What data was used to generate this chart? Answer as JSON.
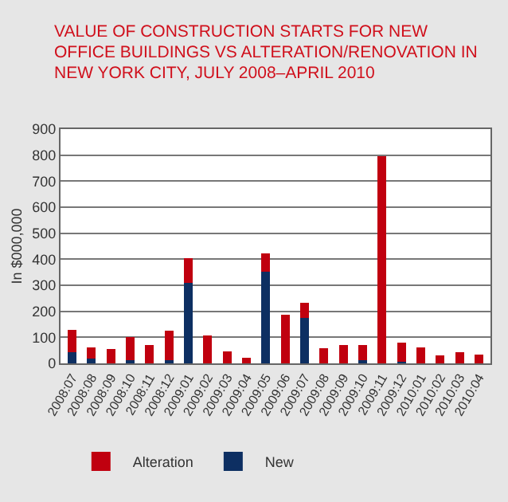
{
  "chart_data": {
    "type": "bar",
    "title": "VALUE OF CONSTRUCTION STARTS FOR NEW OFFICE BUILDINGS VS ALTERATION/RENOVATION IN NEW YORK CITY, JULY 2008–APRIL 2010",
    "ylabel": "In $000,000",
    "categories": [
      "2008:07",
      "2008:08",
      "2008:09",
      "2008:10",
      "2008:11",
      "2008:12",
      "2009:01",
      "2009:02",
      "2009:03",
      "2009:04",
      "2009:05",
      "2009:06",
      "2009:07",
      "2009:08",
      "2009:09",
      "2009:10",
      "2009:11",
      "2009:12",
      "2010:01",
      "2010:02",
      "2010:03",
      "2010:04"
    ],
    "stacked": true,
    "series": [
      {
        "name": "New",
        "color": "#0d2f62",
        "values": [
          42,
          18,
          0,
          11,
          null,
          11,
          309,
          0,
          0,
          0,
          351,
          null,
          176,
          0,
          0,
          11,
          null,
          5,
          0,
          0,
          0,
          0
        ]
      },
      {
        "name": "Alteration",
        "color": "#c0000f",
        "values": [
          86,
          42,
          56,
          90,
          70,
          116,
          96,
          108,
          45,
          22,
          70,
          187,
          57,
          59,
          69,
          60,
          797,
          75,
          62,
          30,
          43,
          34
        ]
      }
    ],
    "ylim": [
      0,
      900
    ],
    "yticks": [
      0,
      100,
      200,
      300,
      400,
      500,
      600,
      700,
      800,
      900
    ],
    "grid": "y",
    "legend": "bottom"
  }
}
